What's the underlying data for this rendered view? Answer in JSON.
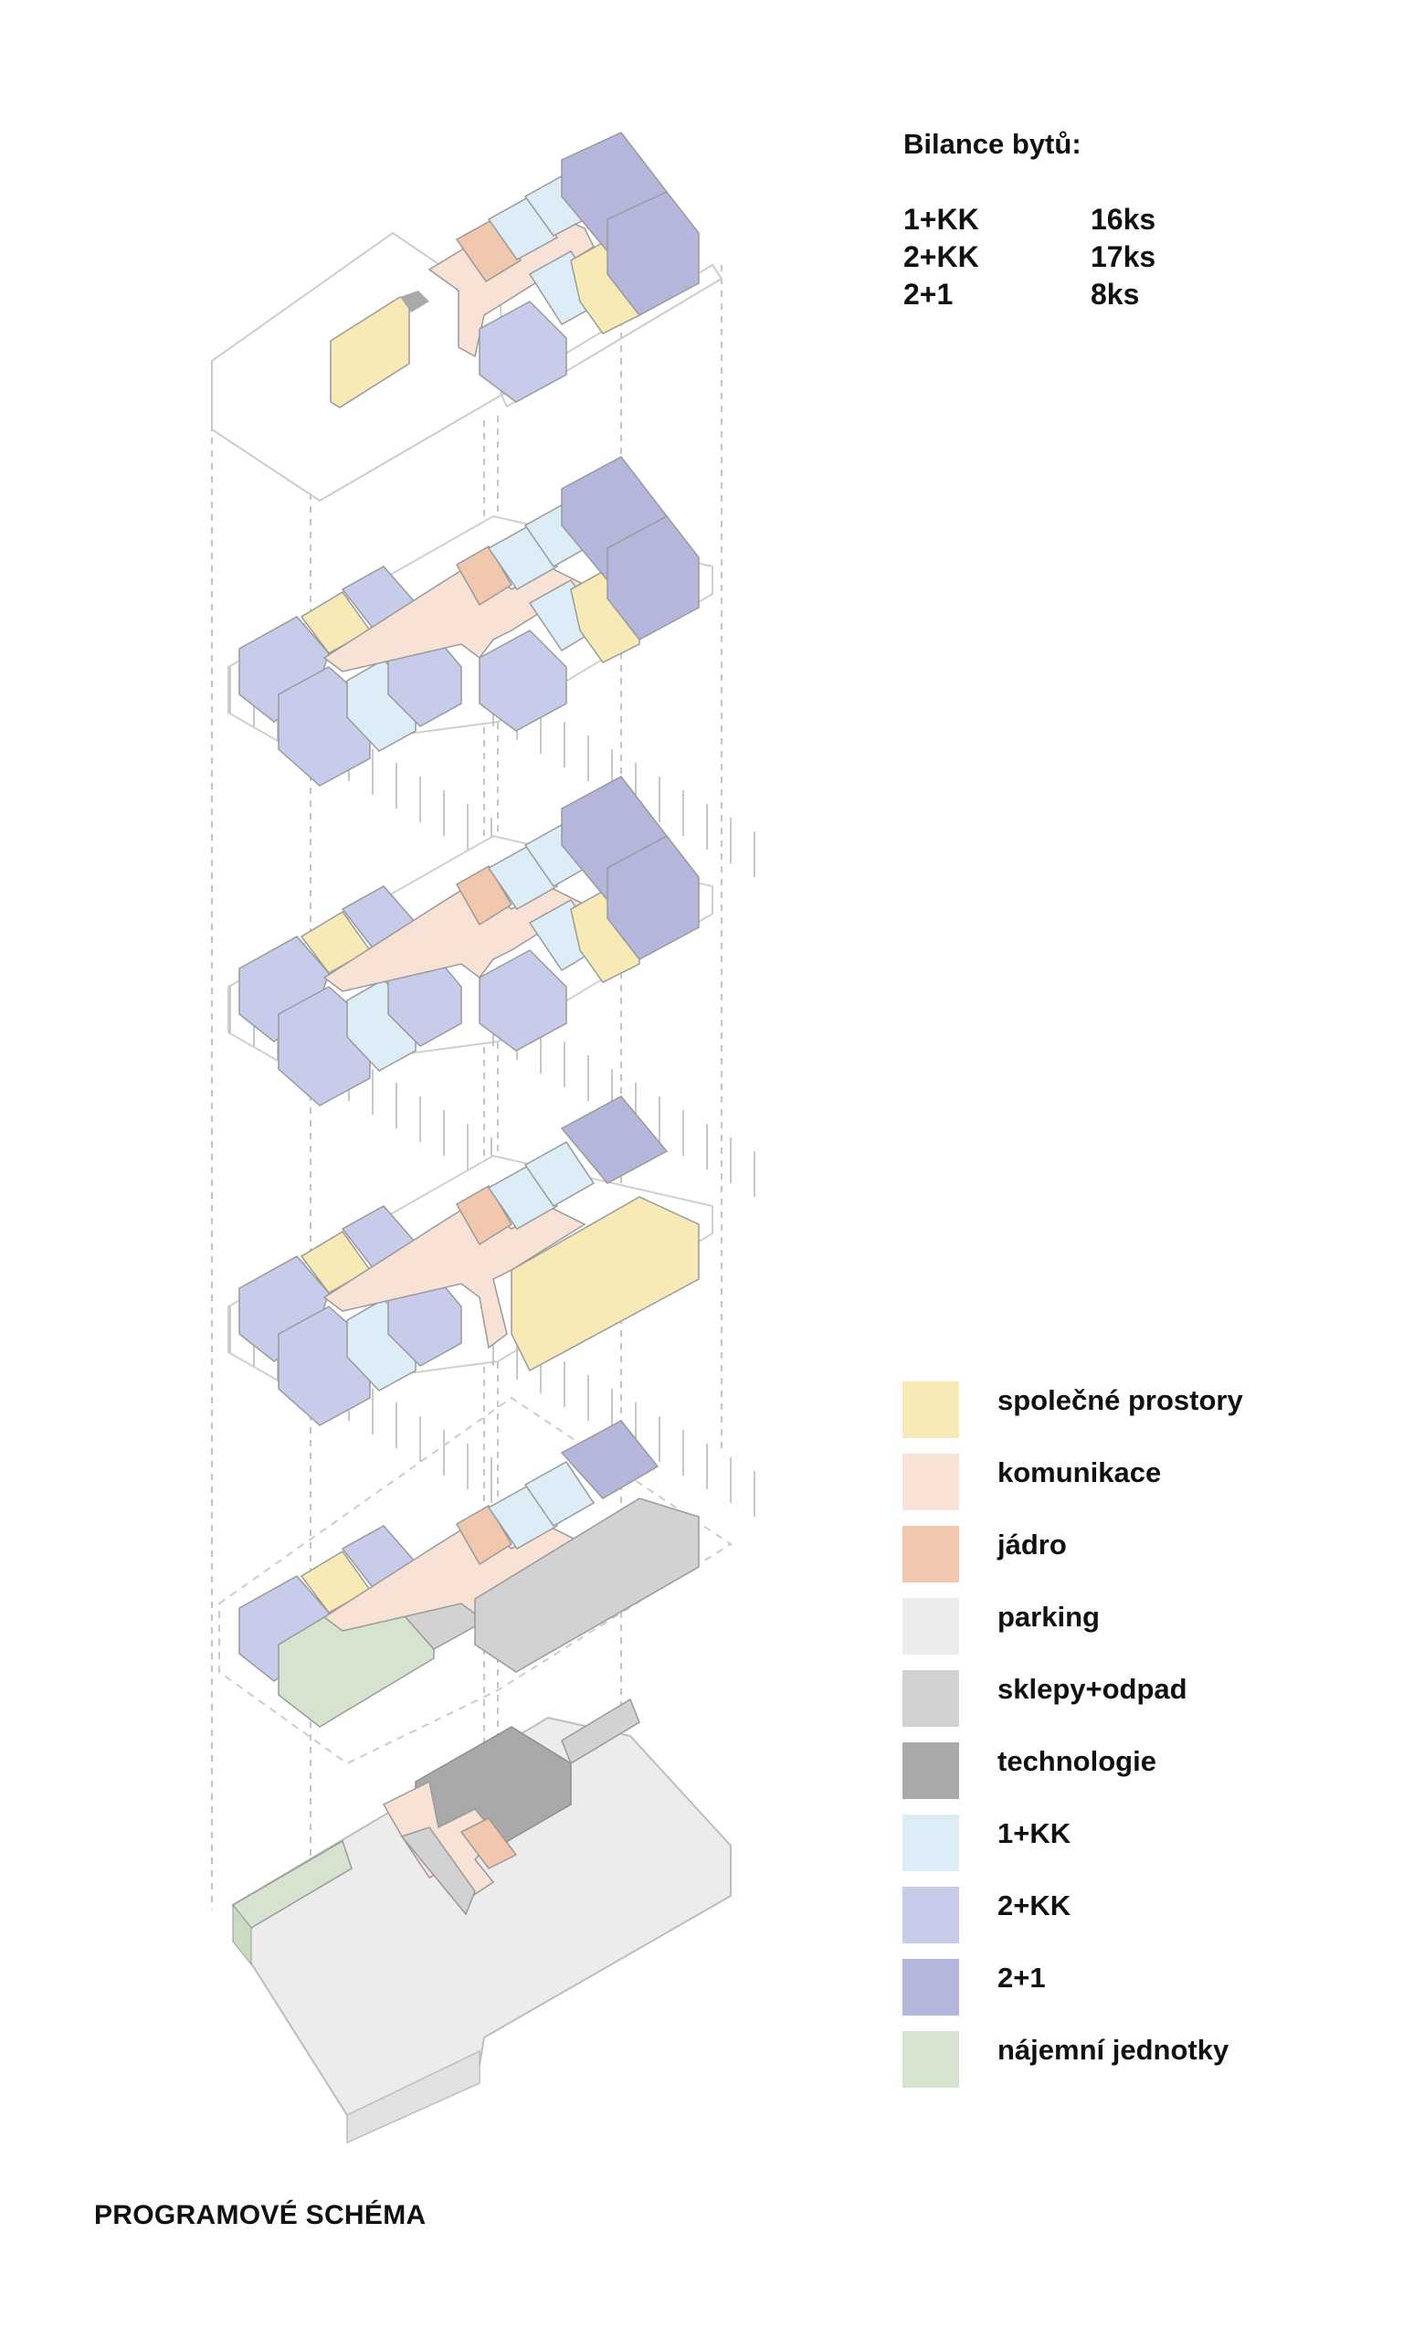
{
  "balance": {
    "title": "Bilance bytů:",
    "rows": [
      {
        "type": "1+KK",
        "count": "16ks"
      },
      {
        "type": "2+KK",
        "count": "17ks"
      },
      {
        "type": "2+1",
        "count": "8ks"
      }
    ]
  },
  "legend": [
    {
      "label": "společné prostory",
      "color": "#f8eab7"
    },
    {
      "label": "komunikace",
      "color": "#f8e1d5"
    },
    {
      "label": "jádro",
      "color": "#f1c7ad"
    },
    {
      "label": "parking",
      "color": "#ececec"
    },
    {
      "label": "sklepy+odpad",
      "color": "#d2d2d2"
    },
    {
      "label": "technologie",
      "color": "#a9a9a9"
    },
    {
      "label": "1+KK",
      "color": "#dcedf8"
    },
    {
      "label": "2+KK",
      "color": "#c7cceb"
    },
    {
      "label": "2+1",
      "color": "#b4b6dc"
    },
    {
      "label": "nájemní jednotky",
      "color": "#d6e4cf"
    }
  ],
  "caption": "PROGRAMOVÉ SCHÉMA"
}
